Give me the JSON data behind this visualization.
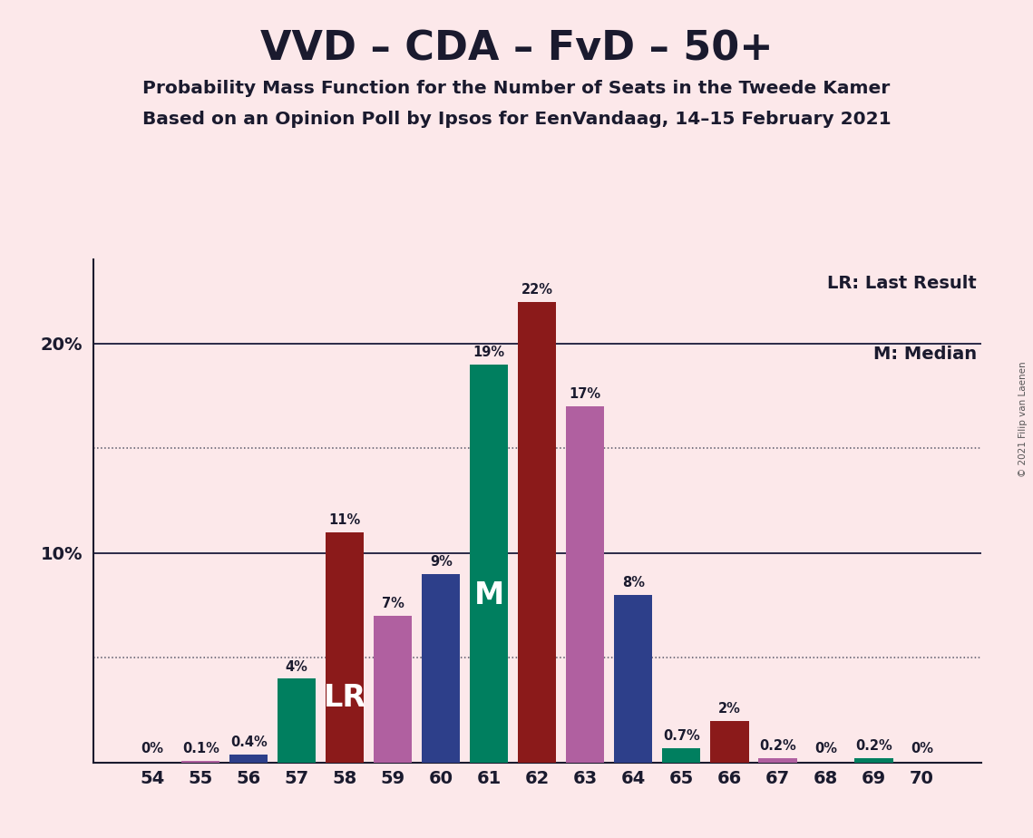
{
  "title": "VVD – CDA – FvD – 50+",
  "subtitle1": "Probability Mass Function for the Number of Seats in the Tweede Kamer",
  "subtitle2": "Based on an Opinion Poll by Ipsos for EenVandaag, 14–15 February 2021",
  "copyright": "© 2021 Filip van Laenen",
  "legend_lr": "LR: Last Result",
  "legend_m": "M: Median",
  "seats": [
    54,
    55,
    56,
    57,
    58,
    59,
    60,
    61,
    62,
    63,
    64,
    65,
    66,
    67,
    68,
    69,
    70
  ],
  "values": [
    0.0,
    0.1,
    0.4,
    4.0,
    11.0,
    7.0,
    9.0,
    19.0,
    22.0,
    17.0,
    8.0,
    0.7,
    2.0,
    0.2,
    0.0,
    0.2,
    0.0
  ],
  "labels": [
    "0%",
    "0.1%",
    "0.4%",
    "4%",
    "11%",
    "7%",
    "9%",
    "19%",
    "22%",
    "17%",
    "8%",
    "0.7%",
    "2%",
    "0.2%",
    "0%",
    "0.2%",
    "0%"
  ],
  "bar_colors": [
    "#007f5f",
    "#b060a0",
    "#2d3f8a",
    "#007f5f",
    "#8b1a1a",
    "#b060a0",
    "#2d3f8a",
    "#007f5f",
    "#8b1a1a",
    "#b060a0",
    "#2d3f8a",
    "#007f5f",
    "#8b1a1a",
    "#b060a0",
    "#2d3f8a",
    "#007f5f",
    "#b060a0"
  ],
  "median_seat": 61,
  "lr_seat": 58,
  "background_color": "#fce8ea",
  "ylim_max": 24,
  "dotted_lines": [
    5.0,
    15.0
  ],
  "solid_lines": [
    10.0,
    20.0
  ],
  "ytick_positions": [
    10,
    20
  ],
  "ytick_labels": [
    "10%",
    "20%"
  ]
}
